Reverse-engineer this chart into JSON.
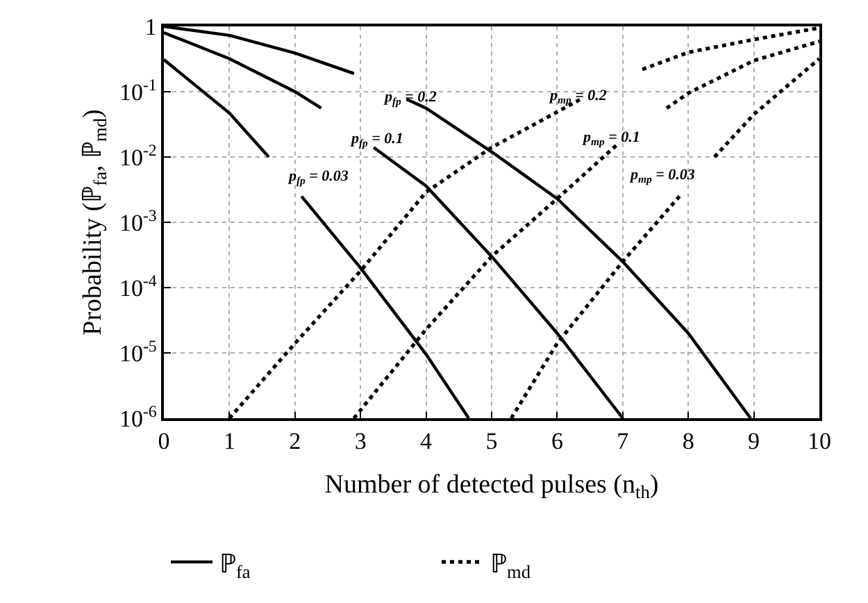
{
  "chart_data": {
    "type": "line",
    "xlabel": "Number of detected pulses (n$_{th}$)",
    "ylabel": "Probability (ℙ$_{fa}$, ℙ$_{md}$)",
    "log": "y",
    "grid": true,
    "legend": "bottom",
    "marker": "none",
    "xlim": [
      0,
      10
    ],
    "xticks": [
      0,
      1,
      2,
      3,
      4,
      5,
      6,
      7,
      8,
      9,
      10
    ],
    "ylim": [
      1e-06,
      1
    ],
    "yticks": [
      {
        "value": 1e-06,
        "label": "10$^{-6}$"
      },
      {
        "value": 1e-05,
        "label": "10$^{-5}$"
      },
      {
        "value": 0.0001,
        "label": "10$^{-4}$"
      },
      {
        "value": 0.001,
        "label": "10$^{-3}$"
      },
      {
        "value": 0.01,
        "label": "10$^{-2}$"
      },
      {
        "value": 0.1,
        "label": "10$^{-1}$"
      },
      1
    ],
    "series": [
      {
        "name": "ℙ$_{fa}$",
        "color": "#000000",
        "line_style": "solid",
        "x": [
          0,
          1,
          2,
          2.9,
          3.3,
          3.7,
          4,
          5,
          6,
          7,
          8,
          8.95
        ],
        "values": [
          1,
          0.73,
          0.39,
          0.19,
          null,
          0.077,
          0.056,
          0.012,
          0.0023,
          0.00025,
          2e-05,
          1e-06
        ]
      },
      {
        "color": "#000000",
        "line_style": "solid",
        "x": [
          0,
          1,
          2,
          2.4,
          2.8,
          3.2,
          4,
          5,
          6,
          7
        ],
        "values": [
          0.8,
          0.32,
          0.1,
          0.056,
          null,
          0.014,
          0.0036,
          0.0003,
          2e-05,
          1e-06
        ]
      },
      {
        "color": "#000000",
        "line_style": "solid",
        "x": [
          0,
          1,
          1.6,
          1.85,
          2.1,
          3,
          4,
          4.65
        ],
        "values": [
          0.31,
          0.047,
          0.01,
          null,
          0.0025,
          0.0002,
          9.5e-06,
          1e-06
        ]
      },
      {
        "name": "ℙ$_{md}$",
        "color": "#000000",
        "line_style": "dotted",
        "x": [
          1,
          2,
          3,
          4,
          5,
          6,
          6.36,
          6.8,
          7.3,
          8,
          9,
          10
        ],
        "values": [
          1e-06,
          1.4e-05,
          0.00018,
          0.0029,
          0.014,
          0.049,
          0.077,
          null,
          0.22,
          0.4,
          0.63,
          0.95
        ]
      },
      {
        "color": "#000000",
        "line_style": "dotted",
        "x": [
          2.9,
          4,
          5,
          6,
          6.9,
          7.3,
          7.67,
          8,
          9,
          10
        ],
        "values": [
          1e-06,
          2.3e-05,
          0.0003,
          0.0023,
          0.015,
          null,
          0.056,
          0.095,
          0.3,
          0.59
        ]
      },
      {
        "color": "#000000",
        "line_style": "dotted",
        "x": [
          5.3,
          6,
          7,
          7.88,
          8.15,
          8.4,
          9,
          10
        ],
        "values": [
          1e-06,
          1.4e-05,
          0.00025,
          0.0026,
          null,
          0.01,
          0.045,
          0.32
        ]
      }
    ],
    "annotations": [
      "p$_{fp}$ = 0.2",
      "p$_{fp}$ = 0.1",
      "p$_{fp}$ = 0.03",
      "p$_{mp}$ = 0.2",
      "p$_{mp}$ = 0.1",
      "p$_{mp}$ = 0.03"
    ]
  }
}
